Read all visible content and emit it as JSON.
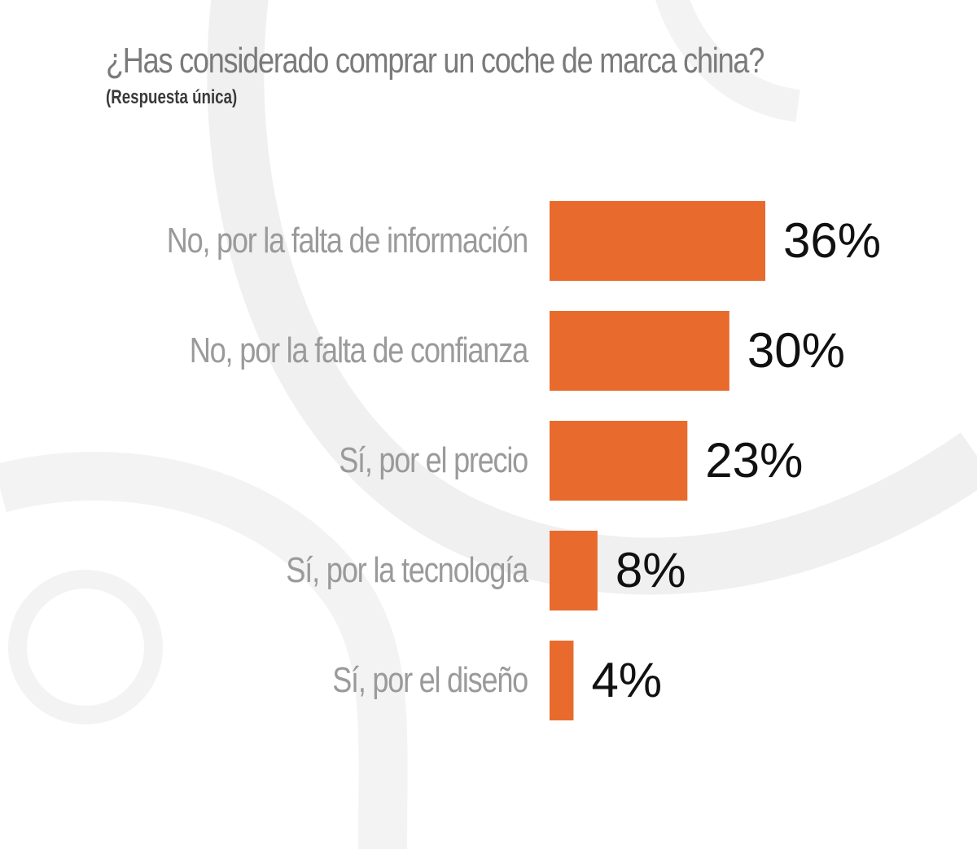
{
  "title": "¿Has considerado comprar un coche de marca china?",
  "subtitle": "(Respuesta única)",
  "colors": {
    "bar": "#E86B2D",
    "title": "#7a7a7a",
    "category_text": "#9a9a9a",
    "value_text": "#111111",
    "background_art": "#efefef"
  },
  "chart_data": {
    "type": "bar",
    "orientation": "horizontal",
    "categories": [
      "No, por la falta de información",
      "No, por la falta de confianza",
      "Sí, por el precio",
      "Sí, por la tecnología",
      "Sí, por el diseño"
    ],
    "values": [
      36,
      30,
      23,
      8,
      4
    ],
    "value_labels": [
      "36%",
      "30%",
      "23%",
      "8%",
      "4%"
    ],
    "unit": "%",
    "xlim": [
      0,
      36
    ],
    "grid": false,
    "legend": "none"
  }
}
